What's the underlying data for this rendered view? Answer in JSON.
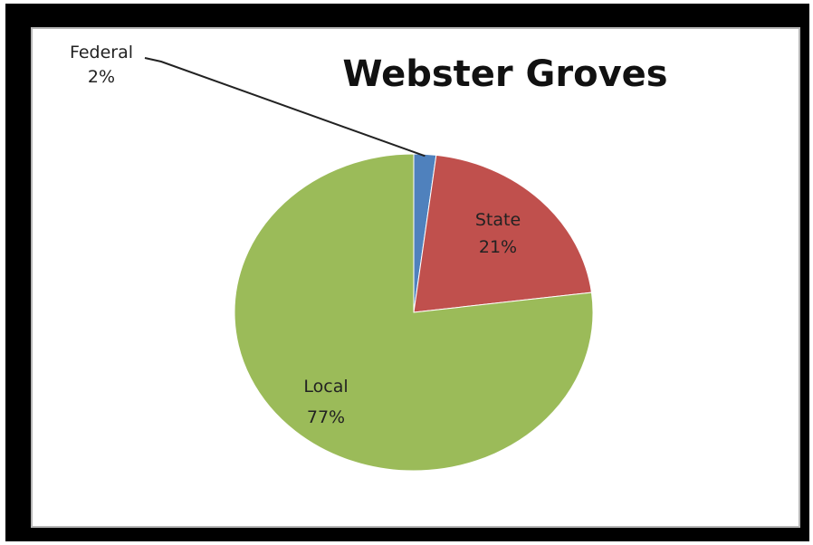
{
  "chart_data": {
    "type": "pie",
    "title": "Webster Groves",
    "slices": [
      {
        "label": "Federal",
        "value": 2,
        "display": "2%",
        "color": "#4f81bd"
      },
      {
        "label": "State",
        "value": 21,
        "display": "21%",
        "color": "#c0504d"
      },
      {
        "label": "Local",
        "value": 77,
        "display": "77%",
        "color": "#9bbb59"
      }
    ],
    "start_angle_deg": 0,
    "direction": "clockwise",
    "legend": "none",
    "label_position": "on-slice, Federal via leader line"
  }
}
